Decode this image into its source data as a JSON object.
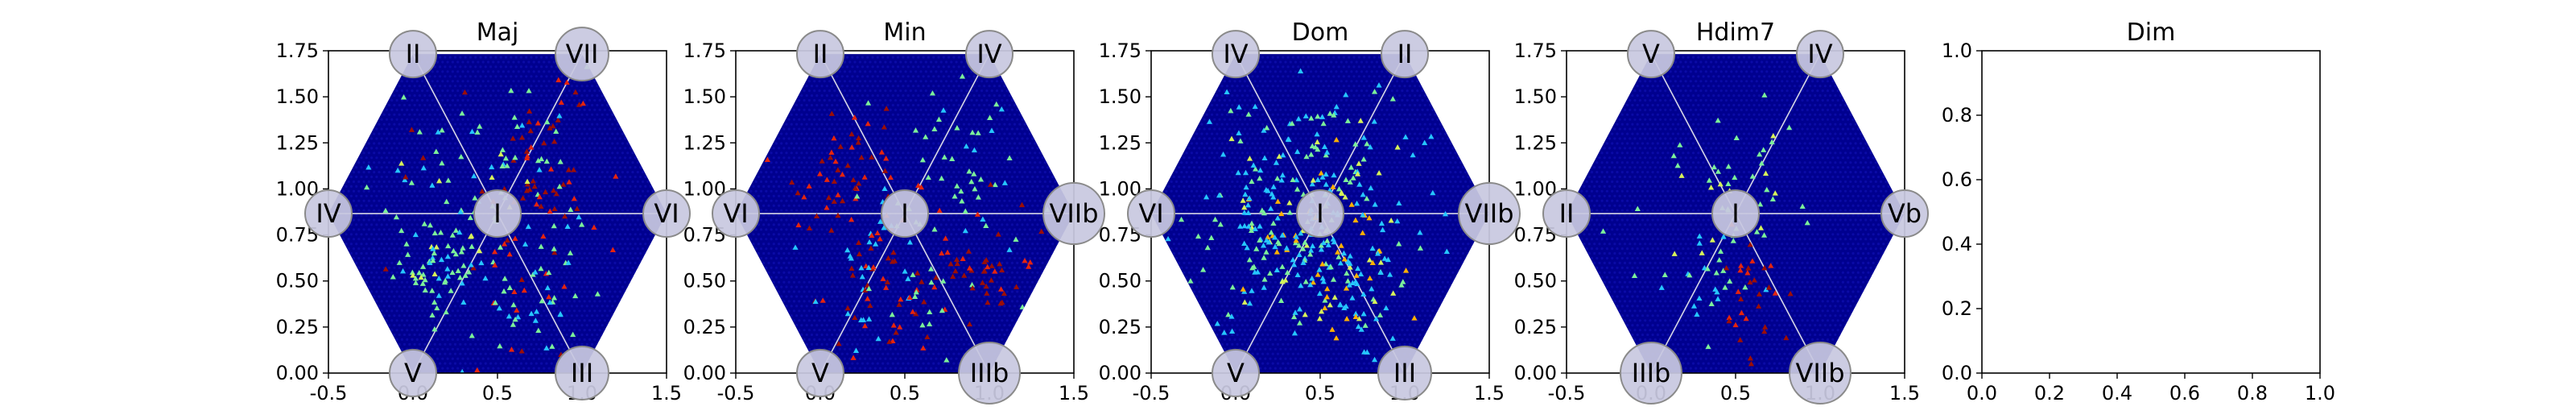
{
  "figure": {
    "colors": {
      "background": "#ffffff",
      "hex_fill": "#00008f",
      "hex_cell": "#0a0aa6",
      "axis": "#000000",
      "spoke": "#d6d6e6",
      "node_fill": "#c8c8e0",
      "node_stroke": "#8a8a8a",
      "point_colors": [
        "#26c6ff",
        "#7cf09a",
        "#d7f25a",
        "#ffb000",
        "#e5240e",
        "#9b0e06"
      ]
    }
  },
  "chart_data": [
    {
      "type": "scatter",
      "title": "Maj",
      "xlim": [
        -0.5,
        1.5
      ],
      "ylim": [
        0,
        1.75
      ],
      "xticks": [
        "-0.5",
        "0.0",
        "0.5",
        "1.0",
        "1.5"
      ],
      "yticks": [
        "0.00",
        "0.25",
        "0.50",
        "0.75",
        "1.00",
        "1.25",
        "1.50",
        "1.75"
      ],
      "hexagon": true,
      "nodes": [
        {
          "label": "I",
          "x": 0.5,
          "y": 0.866
        },
        {
          "label": "II",
          "x": 0.0,
          "y": 1.732
        },
        {
          "label": "VII",
          "x": 1.0,
          "y": 1.732
        },
        {
          "label": "IV",
          "x": -0.5,
          "y": 0.866
        },
        {
          "label": "VI",
          "x": 1.5,
          "y": 0.866
        },
        {
          "label": "V",
          "x": 0.0,
          "y": 0.0
        },
        {
          "label": "III",
          "x": 1.0,
          "y": 0.0
        }
      ],
      "clusters": [
        {
          "cx": 0.15,
          "cy": 0.58,
          "sx": 0.13,
          "sy": 0.11,
          "n": 60,
          "c": [
            1,
            1,
            1,
            2,
            0
          ]
        },
        {
          "cx": 0.75,
          "cy": 1.05,
          "sx": 0.17,
          "sy": 0.28,
          "n": 70,
          "c": [
            5,
            5,
            4,
            4,
            1
          ]
        },
        {
          "cx": 0.25,
          "cy": 1.05,
          "sx": 0.25,
          "sy": 0.2,
          "n": 45,
          "c": [
            1,
            1,
            0,
            2
          ]
        },
        {
          "cx": 0.7,
          "cy": 0.45,
          "sx": 0.15,
          "sy": 0.15,
          "n": 40,
          "c": [
            1,
            1,
            0,
            4
          ]
        },
        {
          "cx": 0.5,
          "cy": 0.85,
          "sx": 0.3,
          "sy": 0.35,
          "n": 45,
          "c": [
            1,
            0,
            0,
            1,
            5
          ]
        }
      ]
    },
    {
      "type": "scatter",
      "title": "Min",
      "xlim": [
        -0.5,
        1.5
      ],
      "ylim": [
        0,
        1.75
      ],
      "xticks": [
        "-0.5",
        "0.0",
        "0.5",
        "1.0",
        "1.5"
      ],
      "yticks": [
        "0.00",
        "0.25",
        "0.50",
        "0.75",
        "1.00",
        "1.25",
        "1.50",
        "1.75"
      ],
      "hexagon": true,
      "nodes": [
        {
          "label": "I",
          "x": 0.5,
          "y": 0.866
        },
        {
          "label": "II",
          "x": 0.0,
          "y": 1.732
        },
        {
          "label": "IV",
          "x": 1.0,
          "y": 1.732
        },
        {
          "label": "VI",
          "x": -0.5,
          "y": 0.866
        },
        {
          "label": "VIIb",
          "x": 1.5,
          "y": 0.866
        },
        {
          "label": "V",
          "x": 0.0,
          "y": 0.0
        },
        {
          "label": "IIIb",
          "x": 1.0,
          "y": 0.0
        }
      ],
      "clusters": [
        {
          "cx": 0.2,
          "cy": 1.05,
          "sx": 0.18,
          "sy": 0.22,
          "n": 55,
          "c": [
            4,
            5,
            5,
            4
          ]
        },
        {
          "cx": 0.75,
          "cy": 1.1,
          "sx": 0.25,
          "sy": 0.28,
          "n": 55,
          "c": [
            1,
            1,
            0,
            1
          ]
        },
        {
          "cx": 0.28,
          "cy": 0.5,
          "sx": 0.15,
          "sy": 0.18,
          "n": 55,
          "c": [
            0,
            0,
            0,
            5,
            4
          ]
        },
        {
          "cx": 0.95,
          "cy": 0.55,
          "sx": 0.22,
          "sy": 0.15,
          "n": 45,
          "c": [
            5,
            4,
            5
          ]
        },
        {
          "cx": 0.6,
          "cy": 0.45,
          "sx": 0.15,
          "sy": 0.2,
          "n": 35,
          "c": [
            5,
            4,
            1
          ]
        }
      ]
    },
    {
      "type": "scatter",
      "title": "Dom",
      "xlim": [
        -0.5,
        1.5
      ],
      "ylim": [
        0,
        1.75
      ],
      "xticks": [
        "-0.5",
        "0.0",
        "0.5",
        "1.0",
        "1.5"
      ],
      "yticks": [
        "0.00",
        "0.25",
        "0.50",
        "0.75",
        "1.00",
        "1.25",
        "1.50",
        "1.75"
      ],
      "hexagon": true,
      "nodes": [
        {
          "label": "I",
          "x": 0.5,
          "y": 0.866
        },
        {
          "label": "IV",
          "x": 0.0,
          "y": 1.732
        },
        {
          "label": "II",
          "x": 1.0,
          "y": 1.732
        },
        {
          "label": "VI",
          "x": -0.5,
          "y": 0.866
        },
        {
          "label": "VIIb",
          "x": 1.5,
          "y": 0.866
        },
        {
          "label": "V",
          "x": 0.0,
          "y": 0.0
        },
        {
          "label": "III",
          "x": 1.0,
          "y": 0.0
        }
      ],
      "clusters": [
        {
          "cx": 0.45,
          "cy": 0.95,
          "sx": 0.3,
          "sy": 0.3,
          "n": 180,
          "c": [
            0,
            0,
            0,
            0,
            1,
            1,
            2,
            3
          ]
        },
        {
          "cx": 0.65,
          "cy": 0.45,
          "sx": 0.15,
          "sy": 0.15,
          "n": 70,
          "c": [
            0,
            0,
            1,
            2,
            3
          ]
        },
        {
          "cx": 0.2,
          "cy": 0.65,
          "sx": 0.2,
          "sy": 0.2,
          "n": 60,
          "c": [
            0,
            0,
            1
          ]
        },
        {
          "cx": 0.5,
          "cy": 0.85,
          "sx": 0.5,
          "sy": 0.4,
          "n": 60,
          "c": [
            0,
            0,
            1
          ]
        }
      ]
    },
    {
      "type": "scatter",
      "title": "Hdim7",
      "xlim": [
        -0.5,
        1.5
      ],
      "ylim": [
        0,
        1.75
      ],
      "xticks": [
        "-0.5",
        "0.0",
        "0.5",
        "1.0",
        "1.5"
      ],
      "yticks": [
        "0.00",
        "0.25",
        "0.50",
        "0.75",
        "1.00",
        "1.25",
        "1.50",
        "1.75"
      ],
      "hexagon": true,
      "nodes": [
        {
          "label": "I",
          "x": 0.5,
          "y": 0.866
        },
        {
          "label": "V",
          "x": 0.0,
          "y": 1.732
        },
        {
          "label": "IV",
          "x": 1.0,
          "y": 1.732
        },
        {
          "label": "II",
          "x": -0.5,
          "y": 0.866
        },
        {
          "label": "Vb",
          "x": 1.5,
          "y": 0.866
        },
        {
          "label": "IIIb",
          "x": 0.0,
          "y": 0.0
        },
        {
          "label": "VIIb",
          "x": 1.0,
          "y": 0.0
        }
      ],
      "clusters": [
        {
          "cx": 0.45,
          "cy": 1.0,
          "sx": 0.25,
          "sy": 0.22,
          "n": 45,
          "c": [
            1,
            1,
            1,
            2
          ]
        },
        {
          "cx": 0.35,
          "cy": 0.5,
          "sx": 0.12,
          "sy": 0.15,
          "n": 25,
          "c": [
            1,
            1,
            0
          ]
        },
        {
          "cx": 0.6,
          "cy": 0.4,
          "sx": 0.1,
          "sy": 0.15,
          "n": 30,
          "c": [
            5,
            5,
            4
          ]
        }
      ]
    },
    {
      "type": "scatter",
      "title": "Dim",
      "xlim": [
        0,
        1
      ],
      "ylim": [
        0,
        1
      ],
      "xticks": [
        "0.0",
        "0.2",
        "0.4",
        "0.6",
        "0.8",
        "1.0"
      ],
      "yticks": [
        "0.0",
        "0.2",
        "0.4",
        "0.6",
        "0.8",
        "1.0"
      ],
      "hexagon": false,
      "nodes": [],
      "clusters": []
    }
  ]
}
